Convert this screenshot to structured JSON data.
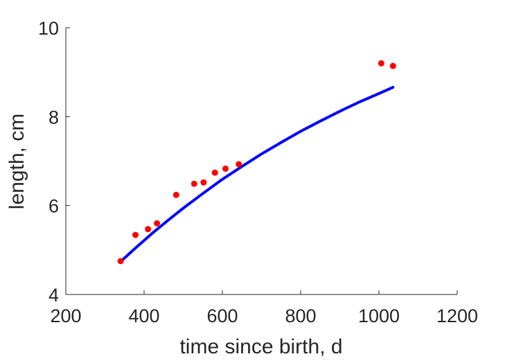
{
  "chart_data": {
    "type": "scatter",
    "title": "",
    "xlabel": "time since birth, d",
    "ylabel": "length, cm",
    "xlim": [
      200,
      1200
    ],
    "ylim": [
      4,
      10
    ],
    "xticks": [
      200,
      400,
      600,
      800,
      1000,
      1200
    ],
    "yticks": [
      4,
      6,
      8,
      10
    ],
    "xtick_labels": [
      "200",
      "400",
      "600",
      "800",
      "1000",
      "1200"
    ],
    "ytick_labels": [
      "4",
      "6",
      "8",
      "10"
    ],
    "grid": false,
    "legend": "none",
    "series": [
      {
        "kind": "scatter",
        "color": "#ff0000",
        "x": [
          340,
          378,
          410,
          433,
          482,
          528,
          552,
          581,
          608,
          642,
          1006,
          1036
        ],
        "y": [
          4.75,
          5.34,
          5.47,
          5.6,
          6.24,
          6.49,
          6.52,
          6.74,
          6.83,
          6.93,
          9.2,
          9.14
        ]
      },
      {
        "kind": "line",
        "color": "#0000ff",
        "x": [
          340,
          380,
          420,
          460,
          500,
          550,
          600,
          650,
          700,
          750,
          800,
          850,
          900,
          950,
          1000,
          1036
        ],
        "y": [
          4.74,
          5.06,
          5.37,
          5.66,
          5.94,
          6.27,
          6.59,
          6.88,
          7.16,
          7.42,
          7.67,
          7.9,
          8.12,
          8.33,
          8.52,
          8.66
        ]
      }
    ]
  }
}
